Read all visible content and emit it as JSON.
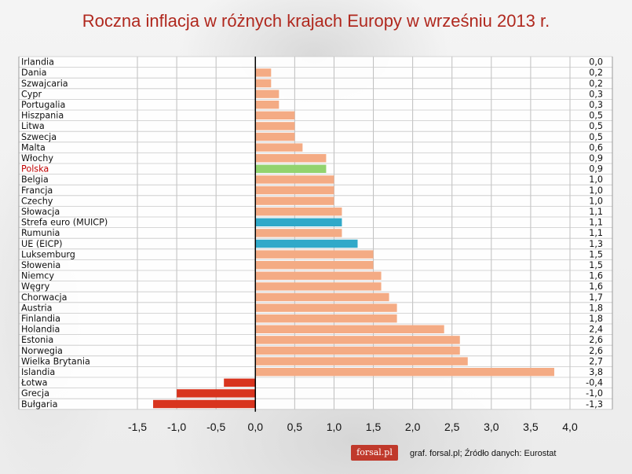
{
  "title": "Roczna inflacja w różnych krajach Europy w wrześniu 2013 r.",
  "source": "graf. forsal.pl; Źródło danych: Eurostat",
  "logo_text": "forsal.pl",
  "colors": {
    "default": "#f4ab84",
    "poland": "#92d36e",
    "aggregate": "#31a9c9",
    "negative": "#d8341e",
    "poland_label": "#c00000"
  },
  "chart_data": {
    "type": "bar",
    "orientation": "horizontal",
    "title": "Roczna inflacja w różnych krajach Europy w wrześniu 2013 r.",
    "categories": [
      "Irlandia",
      "Dania",
      "Szwajcaria",
      "Cypr",
      "Portugalia",
      "Hiszpania",
      "Litwa",
      "Szwecja",
      "Malta",
      "Włochy",
      "Polska",
      "Belgia",
      "Francja",
      "Czechy",
      "Słowacja",
      "Strefa euro (MUICP)",
      "Rumunia",
      "UE (EICP)",
      "Luksemburg",
      "Słowenia",
      "Niemcy",
      "Węgry",
      "Chorwacja",
      "Austria",
      "Finlandia",
      "Holandia",
      "Estonia",
      "Norwegia",
      "Wielka Brytania",
      "Islandia",
      "Łotwa",
      "Grecja",
      "Bułgaria"
    ],
    "values": [
      0.0,
      0.2,
      0.2,
      0.3,
      0.3,
      0.5,
      0.5,
      0.5,
      0.6,
      0.9,
      0.9,
      1.0,
      1.0,
      1.0,
      1.1,
      1.1,
      1.1,
      1.3,
      1.5,
      1.5,
      1.6,
      1.6,
      1.7,
      1.8,
      1.8,
      2.4,
      2.6,
      2.6,
      2.7,
      3.8,
      -0.4,
      -1.0,
      -1.3
    ],
    "value_labels": [
      "0,0",
      "0,2",
      "0,2",
      "0,3",
      "0,3",
      "0,5",
      "0,5",
      "0,5",
      "0,6",
      "0,9",
      "0,9",
      "1,0",
      "1,0",
      "1,0",
      "1,1",
      "1,1",
      "1,1",
      "1,3",
      "1,5",
      "1,5",
      "1,6",
      "1,6",
      "1,7",
      "1,8",
      "1,8",
      "2,4",
      "2,6",
      "2,6",
      "2,7",
      "3,8",
      "-0,4",
      "-1,0",
      "-1,3"
    ],
    "bar_kind": [
      "default",
      "default",
      "default",
      "default",
      "default",
      "default",
      "default",
      "default",
      "default",
      "default",
      "poland",
      "default",
      "default",
      "default",
      "default",
      "aggregate",
      "default",
      "aggregate",
      "default",
      "default",
      "default",
      "default",
      "default",
      "default",
      "default",
      "default",
      "default",
      "default",
      "default",
      "default",
      "negative",
      "negative",
      "negative"
    ],
    "xlim": [
      -1.5,
      4.0
    ],
    "xticks": [
      -1.5,
      -1.0,
      -0.5,
      0.0,
      0.5,
      1.0,
      1.5,
      2.0,
      2.5,
      3.0,
      3.5,
      4.0
    ],
    "xtick_labels": [
      "-1,5",
      "-1,0",
      "-0,5",
      "0,0",
      "0,5",
      "1,0",
      "1,5",
      "2,0",
      "2,5",
      "3,0",
      "3,5",
      "4,0"
    ],
    "grid": true
  }
}
